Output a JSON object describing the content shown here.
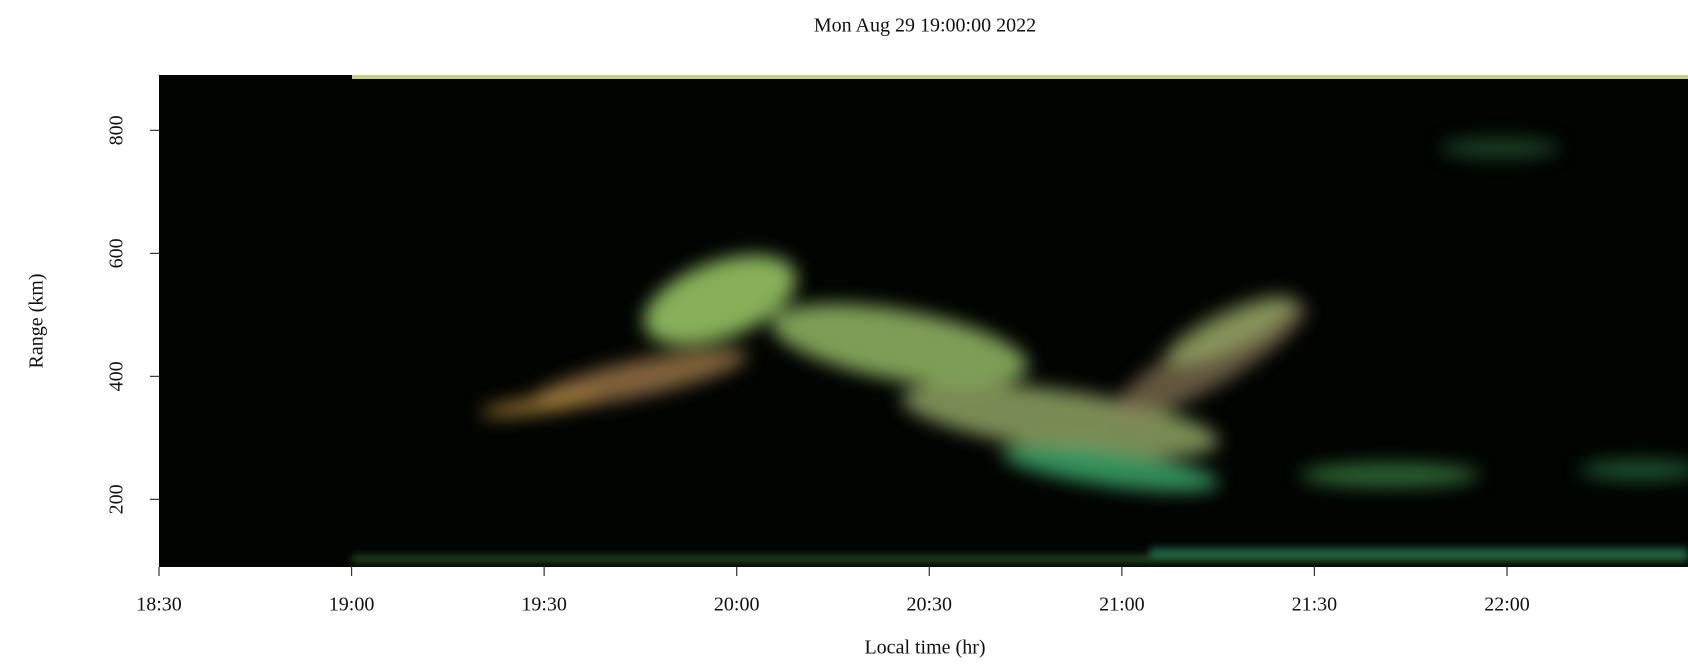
{
  "chart_data": {
    "type": "image",
    "title": "Mon Aug 29 19:00:00 2022",
    "xlabel": "Local time (hr)",
    "ylabel": "Range (km)",
    "xlim": [
      18.5,
      22.47
    ],
    "xticks": [
      {
        "value": 18.5,
        "label": "18:30"
      },
      {
        "value": 19,
        "label": "19:00"
      },
      {
        "value": 19.5,
        "label": "19:30"
      },
      {
        "value": 20,
        "label": "20:00"
      },
      {
        "value": 20.5,
        "label": "20:30"
      },
      {
        "value": 21,
        "label": "21:00"
      },
      {
        "value": 21.5,
        "label": "21:30"
      },
      {
        "value": 22,
        "label": "22:00"
      }
    ],
    "ylim": [
      90,
      890
    ],
    "yticks": [
      200,
      400,
      600,
      800
    ]
  }
}
